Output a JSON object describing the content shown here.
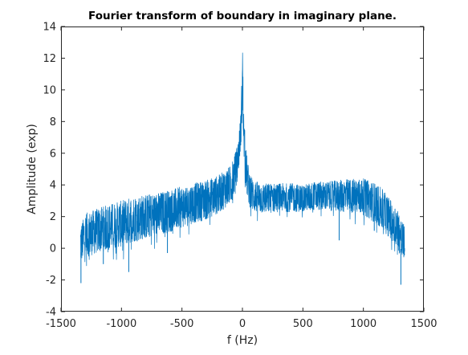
{
  "chart_data": {
    "type": "line",
    "title": "Fourier transform of boundary in imaginary plane.",
    "xlabel": "f (Hz)",
    "ylabel": "Amplitude (exp)",
    "xlim": [
      -1500,
      1500
    ],
    "ylim": [
      -4,
      14
    ],
    "xticks": [
      -1500,
      -1000,
      -500,
      0,
      500,
      1000,
      1500
    ],
    "xtick_labels": [
      "-1500",
      "-1000",
      "-500",
      "0",
      "500",
      "1000",
      "1500"
    ],
    "yticks": [
      -4,
      -2,
      0,
      2,
      4,
      6,
      8,
      10,
      12,
      14
    ],
    "ytick_labels": [
      "-4",
      "-2",
      "0",
      "2",
      "4",
      "6",
      "8",
      "10",
      "12",
      "14"
    ],
    "grid": false,
    "box": true,
    "series": [
      {
        "color": "#0072bd",
        "x": [
          -1340,
          -1300,
          -1200,
          -1100,
          -1000,
          -900,
          -800,
          -700,
          -600,
          -500,
          -400,
          -300,
          -200,
          -150,
          -100,
          -80,
          -60,
          -40,
          -30,
          -20,
          -10,
          -5,
          0,
          5,
          10,
          20,
          30,
          40,
          60,
          80,
          100,
          150,
          200,
          300,
          400,
          500,
          600,
          700,
          800,
          900,
          1000,
          1100,
          1150,
          1200,
          1250,
          1280,
          1300,
          1320,
          1340
        ],
        "upper": [
          1.4,
          2.2,
          2.5,
          2.8,
          3.0,
          3.3,
          3.4,
          3.5,
          3.7,
          3.9,
          4.1,
          4.3,
          4.6,
          4.9,
          5.2,
          5.6,
          6.0,
          6.6,
          7.2,
          8.0,
          9.0,
          11.5,
          14.0,
          11.0,
          8.8,
          7.4,
          6.4,
          5.6,
          4.8,
          4.5,
          4.3,
          4.1,
          4.1,
          4.1,
          4.1,
          4.0,
          4.2,
          4.2,
          4.3,
          4.4,
          4.4,
          4.1,
          3.8,
          3.3,
          2.9,
          2.6,
          2.1,
          1.8,
          1.4
        ],
        "lower": [
          -0.9,
          -0.6,
          -0.3,
          -0.1,
          0.1,
          0.4,
          0.6,
          0.8,
          1.0,
          1.3,
          1.6,
          1.8,
          2.2,
          2.5,
          2.8,
          3.2,
          3.6,
          4.4,
          5.0,
          5.8,
          6.8,
          7.5,
          7.8,
          7.2,
          6.2,
          4.6,
          3.8,
          3.2,
          2.6,
          2.4,
          2.3,
          2.2,
          2.2,
          2.3,
          2.3,
          2.3,
          2.4,
          2.4,
          2.3,
          2.2,
          2.1,
          1.6,
          1.2,
          0.8,
          0.3,
          0.0,
          -0.4,
          -0.9,
          -0.6
        ],
        "dips": [
          [
            -1335,
            -2.2
          ],
          [
            -1150,
            -1.0
          ],
          [
            -940,
            -1.5
          ],
          [
            -620,
            -0.3
          ],
          [
            800,
            0.5
          ],
          [
            1090,
            1.1
          ],
          [
            1310,
            -2.3
          ],
          [
            1340,
            -0.2
          ]
        ]
      }
    ]
  }
}
